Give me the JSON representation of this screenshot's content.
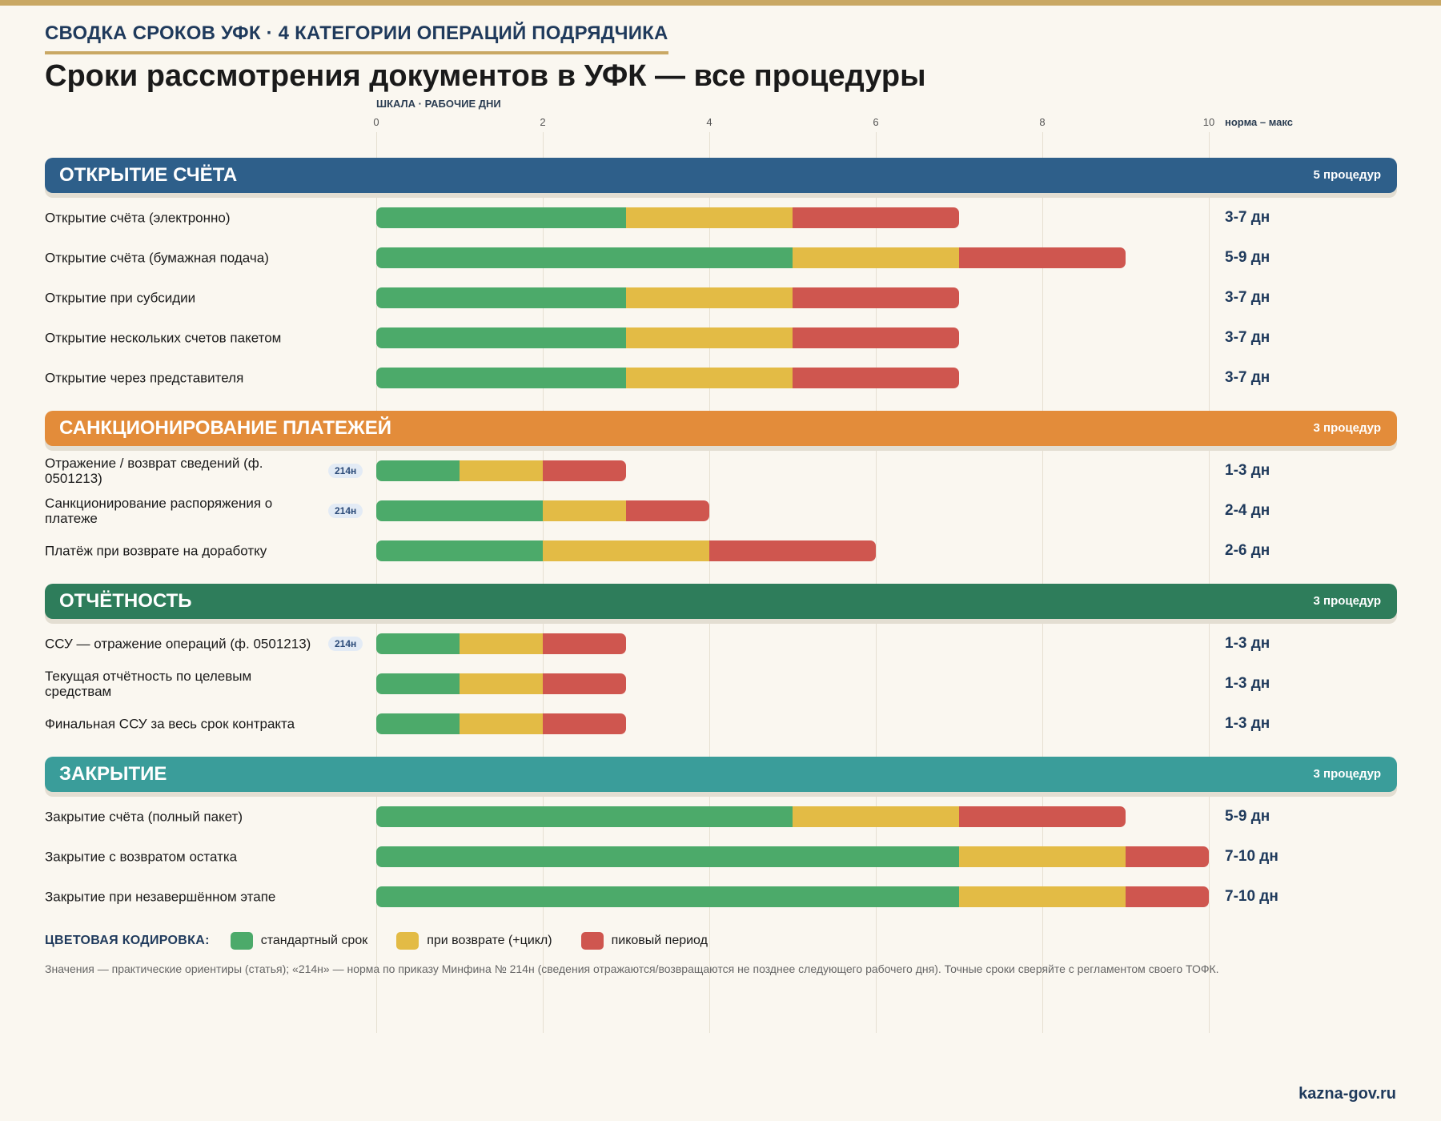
{
  "header": {
    "kicker": "СВОДКА СРОКОВ УФК · 4 КАТЕГОРИИ ОПЕРАЦИЙ ПОДРЯДЧИКА",
    "title": "Сроки рассмотрения документов в УФК — все процедуры",
    "scale_label": "ШКАЛА · РАБОЧИЕ ДНИ",
    "range_header": "норма – макс"
  },
  "colors": {
    "standard": "#4caa6a",
    "return": "#e3bb45",
    "peak": "#cf564f"
  },
  "chart_data": {
    "type": "bar",
    "orientation": "horizontal",
    "stacked": true,
    "xlim": [
      0,
      10
    ],
    "x_ticks": [
      0,
      2,
      4,
      6,
      8,
      10
    ],
    "xlabel": "ШКАЛА · РАБОЧИЕ ДНИ",
    "grid": true,
    "legend_position": "bottom-left",
    "series_names": [
      "стандартный срок",
      "при возврате (+цикл)",
      "пиковый период"
    ],
    "categories": [
      {
        "name": "ОТКРЫТИЕ СЧЁТА",
        "count_label": "5 процедур",
        "color": "#2e5f8a",
        "rows": [
          {
            "label": "Открытие счёта (электронно)",
            "badge": "",
            "standard": 3,
            "return": 2,
            "peak": 2,
            "range": "3-7 дн"
          },
          {
            "label": "Открытие счёта (бумажная подача)",
            "badge": "",
            "standard": 5,
            "return": 2,
            "peak": 2,
            "range": "5-9 дн"
          },
          {
            "label": "Открытие при субсидии",
            "badge": "",
            "standard": 3,
            "return": 2,
            "peak": 2,
            "range": "3-7 дн"
          },
          {
            "label": "Открытие нескольких счетов пакетом",
            "badge": "",
            "standard": 3,
            "return": 2,
            "peak": 2,
            "range": "3-7 дн"
          },
          {
            "label": "Открытие через представителя",
            "badge": "",
            "standard": 3,
            "return": 2,
            "peak": 2,
            "range": "3-7 дн"
          }
        ]
      },
      {
        "name": "САНКЦИОНИРОВАНИЕ ПЛАТЕЖЕЙ",
        "count_label": "3 процедур",
        "color": "#e38c3a",
        "rows": [
          {
            "label": "Отражение / возврат сведений (ф. 0501213)",
            "badge": "214н",
            "standard": 1,
            "return": 1,
            "peak": 1,
            "range": "1-3 дн"
          },
          {
            "label": "Санкционирование распоряжения о платеже",
            "badge": "214н",
            "standard": 2,
            "return": 1,
            "peak": 1,
            "range": "2-4 дн"
          },
          {
            "label": "Платёж при возврате на доработку",
            "badge": "",
            "standard": 2,
            "return": 2,
            "peak": 2,
            "range": "2-6 дн"
          }
        ]
      },
      {
        "name": "ОТЧЁТНОСТЬ",
        "count_label": "3 процедур",
        "color": "#2e7d5b",
        "rows": [
          {
            "label": "ССУ — отражение операций (ф. 0501213)",
            "badge": "214н",
            "standard": 1,
            "return": 1,
            "peak": 1,
            "range": "1-3 дн"
          },
          {
            "label": "Текущая отчётность по целевым средствам",
            "badge": "",
            "standard": 1,
            "return": 1,
            "peak": 1,
            "range": "1-3 дн"
          },
          {
            "label": "Финальная ССУ за весь срок контракта",
            "badge": "",
            "standard": 1,
            "return": 1,
            "peak": 1,
            "range": "1-3 дн"
          }
        ]
      },
      {
        "name": "ЗАКРЫТИЕ",
        "count_label": "3 процедур",
        "color": "#3a9d9a",
        "rows": [
          {
            "label": "Закрытие счёта (полный пакет)",
            "badge": "",
            "standard": 5,
            "return": 2,
            "peak": 2,
            "range": "5-9 дн"
          },
          {
            "label": "Закрытие с возвратом остатка",
            "badge": "",
            "standard": 7,
            "return": 2,
            "peak": 1,
            "range": "7-10 дн"
          },
          {
            "label": "Закрытие при незавершённом этапе",
            "badge": "",
            "standard": 7,
            "return": 2,
            "peak": 1,
            "range": "7-10 дн"
          }
        ]
      }
    ]
  },
  "legend": {
    "title": "ЦВЕТОВАЯ КОДИРОВКА:",
    "items": [
      "стандартный срок",
      "при возврате (+цикл)",
      "пиковый период"
    ]
  },
  "footnote": "Значения — практические ориентиры (статья); «214н» — норма по приказу Минфина № 214н (сведения отражаются/возвращаются не позднее следующего рабочего дня). Точные сроки сверяйте с регламентом своего ТОФК.",
  "site": "kazna-gov.ru"
}
